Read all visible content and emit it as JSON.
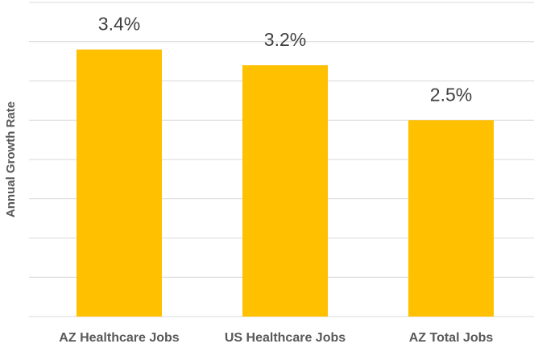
{
  "chart_data": {
    "type": "bar",
    "y_label": "Annual Growth Rate",
    "categories": [
      "AZ Healthcare Jobs",
      "US Healthcare Jobs",
      "AZ Total Jobs"
    ],
    "values": [
      3.4,
      3.2,
      2.5
    ],
    "value_labels": [
      "3.4%",
      "3.2%",
      "2.5%"
    ],
    "color": "#ffc000",
    "ylim": [
      0,
      4
    ],
    "yticks": [
      0,
      0.5,
      1,
      1.5,
      2,
      2.5,
      3,
      3.5,
      4
    ],
    "grid": true
  }
}
